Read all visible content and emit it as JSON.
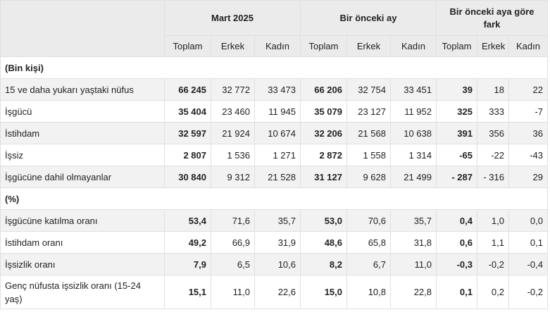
{
  "header": {
    "groups": [
      "Mart 2025",
      "Bir önceki ay",
      "Bir önceki aya göre fark"
    ],
    "subcols": [
      "Toplam",
      "Erkek",
      "Kadın",
      "Toplam",
      "Erkek",
      "Kadın",
      "Toplam",
      "Erkek",
      "Kadın"
    ]
  },
  "sections": [
    {
      "title": "(Bin kişi)",
      "rows": [
        {
          "label": "15 ve daha yukarı yaştaki nüfus",
          "values": [
            "66 245",
            "32 772",
            "33 473",
            "66 206",
            "32 754",
            "33 451",
            "39",
            "18",
            "22"
          ]
        },
        {
          "label": "İşgücü",
          "values": [
            "35 404",
            "23 460",
            "11 945",
            "35 079",
            "23 127",
            "11 952",
            "325",
            "333",
            "-7"
          ]
        },
        {
          "label": "İstihdam",
          "values": [
            "32 597",
            "21 924",
            "10 674",
            "32 206",
            "21 568",
            "10 638",
            "391",
            "356",
            "36"
          ]
        },
        {
          "label": "İşsiz",
          "values": [
            "2 807",
            "1 536",
            "1 271",
            "2 872",
            "1 558",
            "1 314",
            "-65",
            "-22",
            "-43"
          ]
        },
        {
          "label": "İşgücüne dahil olmayanlar",
          "values": [
            "30 840",
            "9 312",
            "21 528",
            "31 127",
            "9 628",
            "21 499",
            "- 287",
            "- 316",
            "29"
          ]
        }
      ]
    },
    {
      "title": "(%)",
      "rows": [
        {
          "label": "İşgücüne katılma oranı",
          "values": [
            "53,4",
            "71,6",
            "35,7",
            "53,0",
            "70,6",
            "35,7",
            "0,4",
            "1,0",
            "0,0"
          ]
        },
        {
          "label": "İstihdam oranı",
          "values": [
            "49,2",
            "66,9",
            "31,9",
            "48,6",
            "65,8",
            "31,8",
            "0,6",
            "1,1",
            "0,1"
          ]
        },
        {
          "label": "İşsizlik oranı",
          "values": [
            "7,9",
            "6,5",
            "10,6",
            "8,2",
            "6,7",
            "11,0",
            "-0,3",
            "-0,2",
            "-0,4"
          ]
        },
        {
          "label": "Genç nüfusta işsizlik oranı (15-24 yaş)",
          "values": [
            "15,1",
            "11,0",
            "22,6",
            "15,0",
            "10,8",
            "22,8",
            "0,1",
            "0,2",
            "-0,2"
          ]
        }
      ]
    }
  ]
}
